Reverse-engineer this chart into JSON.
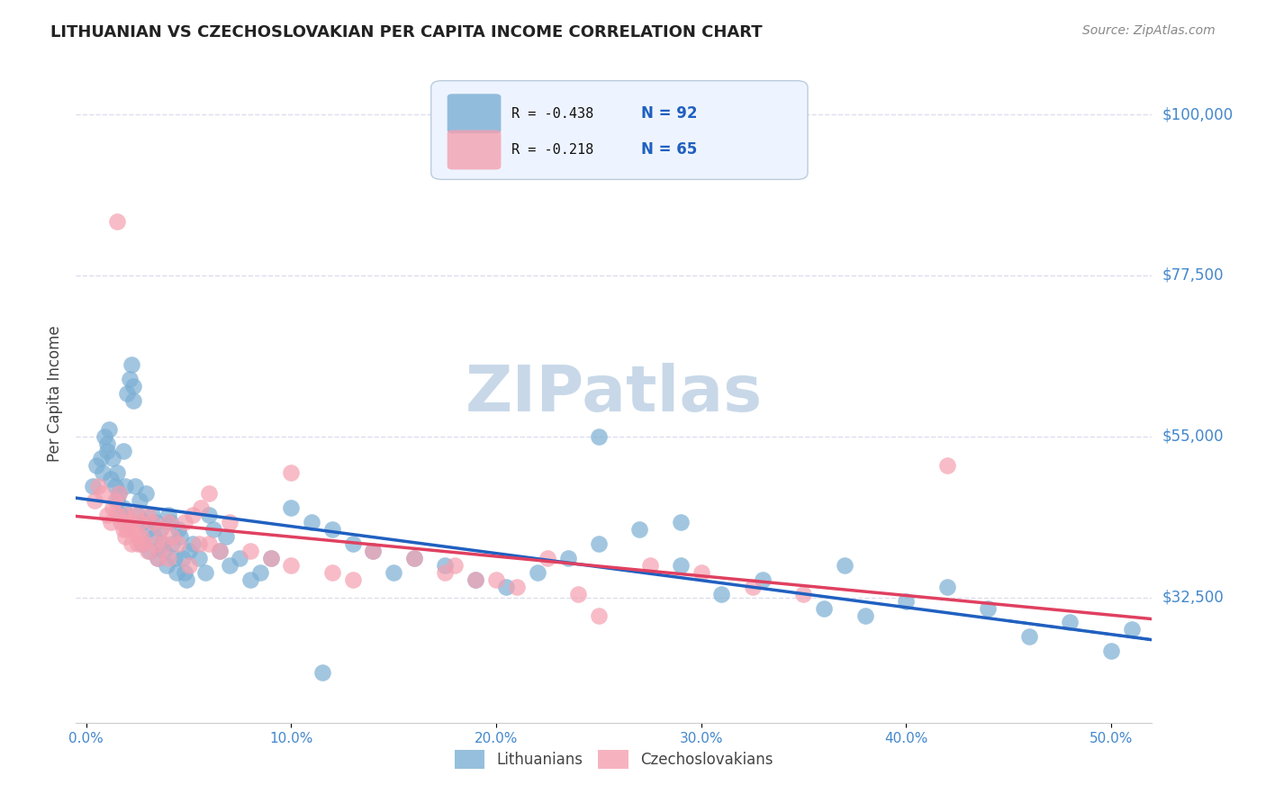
{
  "title": "LITHUANIAN VS CZECHOSLOVAKIAN PER CAPITA INCOME CORRELATION CHART",
  "source": "Source: ZipAtlas.com",
  "ylabel": "Per Capita Income",
  "xlabel_ticks": [
    "0.0%",
    "10.0%",
    "20.0%",
    "30.0%",
    "40.0%",
    "50.0%"
  ],
  "xlabel_vals": [
    0.0,
    0.1,
    0.2,
    0.3,
    0.4,
    0.5
  ],
  "ytick_labels": [
    "$32,500",
    "$55,000",
    "$77,500",
    "$100,000"
  ],
  "ytick_vals": [
    32500,
    55000,
    77500,
    100000
  ],
  "ylim": [
    15000,
    107000
  ],
  "xlim": [
    -0.005,
    0.52
  ],
  "R_blue": -0.438,
  "N_blue": 92,
  "R_pink": -0.218,
  "N_pink": 65,
  "blue_color": "#7BAFD4",
  "pink_color": "#F4A0B0",
  "trend_blue": "#2060C0",
  "trend_pink": "#E04060",
  "title_color": "#222222",
  "axis_label_color": "#444444",
  "tick_color": "#4488CC",
  "watermark_color": "#C8D8E8",
  "background_color": "#FFFFFF",
  "grid_color": "#DDDDEE",
  "legend_box_color": "#EEF4FF",
  "blue_x": [
    0.003,
    0.005,
    0.007,
    0.008,
    0.009,
    0.01,
    0.01,
    0.011,
    0.012,
    0.013,
    0.014,
    0.015,
    0.015,
    0.016,
    0.017,
    0.018,
    0.018,
    0.019,
    0.02,
    0.021,
    0.022,
    0.023,
    0.023,
    0.024,
    0.025,
    0.026,
    0.027,
    0.028,
    0.029,
    0.03,
    0.031,
    0.032,
    0.033,
    0.034,
    0.035,
    0.036,
    0.037,
    0.038,
    0.039,
    0.04,
    0.041,
    0.042,
    0.043,
    0.044,
    0.045,
    0.046,
    0.047,
    0.048,
    0.049,
    0.05,
    0.052,
    0.055,
    0.058,
    0.06,
    0.062,
    0.065,
    0.068,
    0.07,
    0.075,
    0.08,
    0.085,
    0.09,
    0.1,
    0.11,
    0.12,
    0.13,
    0.14,
    0.15,
    0.16,
    0.175,
    0.19,
    0.205,
    0.22,
    0.235,
    0.25,
    0.27,
    0.29,
    0.31,
    0.33,
    0.36,
    0.38,
    0.4,
    0.42,
    0.44,
    0.46,
    0.48,
    0.5,
    0.51,
    0.37,
    0.29,
    0.25,
    0.115
  ],
  "blue_y": [
    48000,
    51000,
    52000,
    50000,
    55000,
    54000,
    53000,
    56000,
    49000,
    52000,
    48000,
    46000,
    50000,
    47000,
    44000,
    53000,
    45000,
    48000,
    61000,
    63000,
    65000,
    62000,
    60000,
    48000,
    44000,
    46000,
    40000,
    43000,
    47000,
    42000,
    39000,
    44000,
    41000,
    43000,
    38000,
    42000,
    40000,
    39000,
    37000,
    44000,
    43000,
    40000,
    38000,
    36000,
    42000,
    41000,
    38000,
    36000,
    35000,
    39000,
    40000,
    38000,
    36000,
    44000,
    42000,
    39000,
    41000,
    37000,
    38000,
    35000,
    36000,
    38000,
    45000,
    43000,
    42000,
    40000,
    39000,
    36000,
    38000,
    37000,
    35000,
    34000,
    36000,
    38000,
    40000,
    42000,
    37000,
    33000,
    35000,
    31000,
    30000,
    32000,
    34000,
    31000,
    27000,
    29000,
    25000,
    28000,
    37000,
    43000,
    55000,
    22000
  ],
  "pink_x": [
    0.004,
    0.006,
    0.008,
    0.01,
    0.012,
    0.013,
    0.014,
    0.015,
    0.016,
    0.017,
    0.018,
    0.019,
    0.02,
    0.021,
    0.022,
    0.023,
    0.024,
    0.025,
    0.026,
    0.027,
    0.028,
    0.03,
    0.032,
    0.034,
    0.036,
    0.038,
    0.04,
    0.042,
    0.045,
    0.048,
    0.052,
    0.056,
    0.06,
    0.07,
    0.08,
    0.09,
    0.1,
    0.12,
    0.14,
    0.16,
    0.18,
    0.2,
    0.225,
    0.25,
    0.275,
    0.3,
    0.325,
    0.1,
    0.015,
    0.02,
    0.025,
    0.03,
    0.035,
    0.04,
    0.05,
    0.055,
    0.06,
    0.065,
    0.13,
    0.35,
    0.42,
    0.175,
    0.19,
    0.21,
    0.24
  ],
  "pink_y": [
    46000,
    48000,
    47000,
    44000,
    43000,
    45000,
    46000,
    44000,
    47000,
    43000,
    42000,
    41000,
    44000,
    43000,
    40000,
    42000,
    44000,
    40000,
    43000,
    41000,
    40000,
    44000,
    43000,
    40000,
    42000,
    40000,
    43000,
    41000,
    40000,
    43000,
    44000,
    45000,
    47000,
    43000,
    39000,
    38000,
    37000,
    36000,
    39000,
    38000,
    37000,
    35000,
    38000,
    30000,
    37000,
    36000,
    34000,
    50000,
    85000,
    42000,
    41000,
    39000,
    38000,
    38000,
    37000,
    40000,
    40000,
    39000,
    35000,
    33000,
    51000,
    36000,
    35000,
    34000,
    33000
  ]
}
